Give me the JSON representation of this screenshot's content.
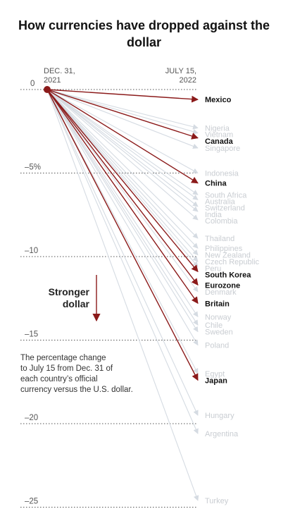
{
  "chart_data": {
    "type": "slope",
    "title": "How currencies have dropped against the dollar",
    "start_label": [
      "DEC. 31,",
      "2021"
    ],
    "end_label": [
      "JULY 15,",
      "2022"
    ],
    "y_ticks": [
      {
        "value": 0,
        "label": "0"
      },
      {
        "value": -5,
        "label": "–5%"
      },
      {
        "value": -10,
        "label": "–10"
      },
      {
        "value": -15,
        "label": "–15"
      },
      {
        "value": -20,
        "label": "–20"
      },
      {
        "value": -25,
        "label": "–25"
      }
    ],
    "ylim": [
      -25,
      0
    ],
    "annotation": {
      "line1": "Stronger",
      "line2": "dollar"
    },
    "note": [
      "The percentage change",
      "to July 15 from Dec. 31 of",
      "each country’s official",
      "currency versus the U.S. dollar."
    ],
    "highlight_color": "#8b1a1a",
    "muted_color": "#d5dbe2",
    "series": [
      {
        "name": "Mexico",
        "value": -0.6,
        "highlight": true
      },
      {
        "name": "Nigeria",
        "value": -2.3,
        "highlight": false
      },
      {
        "name": "Vietnam",
        "value": -2.6,
        "highlight": false
      },
      {
        "name": "Canada",
        "value": -2.9,
        "highlight": true
      },
      {
        "name": "Singapore",
        "value": -3.5,
        "highlight": false
      },
      {
        "name": "Indonesia",
        "value": -5.0,
        "highlight": false
      },
      {
        "name": "China",
        "value": -5.6,
        "highlight": true
      },
      {
        "name": "South Africa",
        "value": -6.3,
        "highlight": false
      },
      {
        "name": "Australia",
        "value": -6.6,
        "highlight": false
      },
      {
        "name": "Switzerland",
        "value": -7.0,
        "highlight": false
      },
      {
        "name": "India",
        "value": -7.3,
        "highlight": false
      },
      {
        "name": "Colombia",
        "value": -7.8,
        "highlight": false
      },
      {
        "name": "Thailand",
        "value": -8.9,
        "highlight": false
      },
      {
        "name": "Philippines",
        "value": -9.5,
        "highlight": false
      },
      {
        "name": "New Zealand",
        "value": -9.9,
        "highlight": false
      },
      {
        "name": "Czech Republic",
        "value": -10.3,
        "highlight": false
      },
      {
        "name": "Peru",
        "value": -10.6,
        "highlight": false
      },
      {
        "name": "South Korea",
        "value": -10.9,
        "highlight": true
      },
      {
        "name": "Eurozone",
        "value": -11.7,
        "highlight": true
      },
      {
        "name": "Denmark",
        "value": -12.1,
        "highlight": false
      },
      {
        "name": "Britain",
        "value": -12.8,
        "highlight": true
      },
      {
        "name": "Norway",
        "value": -13.6,
        "highlight": false
      },
      {
        "name": "Chile",
        "value": -14.1,
        "highlight": false
      },
      {
        "name": "Sweden",
        "value": -14.5,
        "highlight": false
      },
      {
        "name": "Poland",
        "value": -15.3,
        "highlight": false
      },
      {
        "name": "Egypt",
        "value": -17.0,
        "highlight": false
      },
      {
        "name": "Japan",
        "value": -17.4,
        "highlight": true
      },
      {
        "name": "Hungary",
        "value": -19.5,
        "highlight": false
      },
      {
        "name": "Argentina",
        "value": -20.6,
        "highlight": false
      },
      {
        "name": "Turkey",
        "value": -24.6,
        "highlight": false
      }
    ]
  }
}
